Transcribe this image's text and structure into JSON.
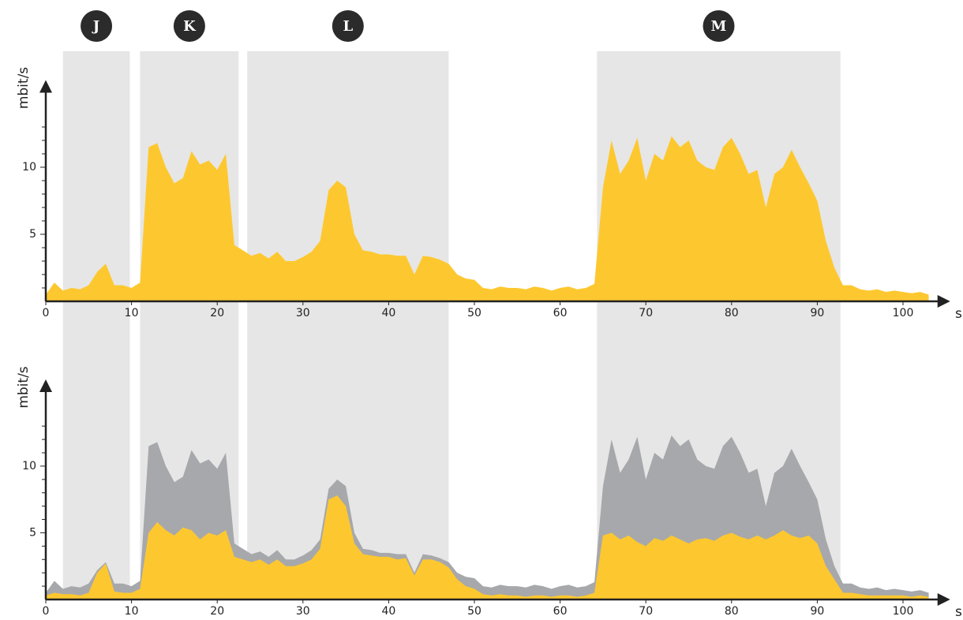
{
  "chart_data": [
    {
      "type": "area",
      "ylabel": "mbit/s",
      "xlabel": "s",
      "x": [
        0,
        1,
        2,
        3,
        4,
        5,
        6,
        7,
        8,
        9,
        10,
        11,
        12,
        13,
        14,
        15,
        16,
        17,
        18,
        19,
        20,
        21,
        22,
        23,
        24,
        25,
        26,
        27,
        28,
        29,
        30,
        31,
        32,
        33,
        34,
        35,
        36,
        37,
        38,
        39,
        40,
        41,
        42,
        43,
        44,
        45,
        46,
        47,
        48,
        49,
        50,
        51,
        52,
        53,
        54,
        55,
        56,
        57,
        58,
        59,
        60,
        61,
        62,
        63,
        64,
        65,
        66,
        67,
        68,
        69,
        70,
        71,
        72,
        73,
        74,
        75,
        76,
        77,
        78,
        79,
        80,
        81,
        82,
        83,
        84,
        85,
        86,
        87,
        88,
        89,
        90,
        91,
        92,
        93,
        94,
        95,
        96,
        97,
        98,
        99,
        100,
        101,
        102,
        103
      ],
      "series": [
        {
          "color": "#fdc82f",
          "values": [
            0.5,
            1.4,
            0.8,
            1.0,
            0.9,
            1.2,
            2.2,
            2.8,
            1.2,
            1.2,
            1.0,
            1.4,
            11.5,
            11.8,
            10.0,
            8.8,
            9.2,
            11.2,
            10.2,
            10.5,
            9.8,
            11.0,
            4.2,
            3.8,
            3.4,
            3.6,
            3.2,
            3.7,
            3.0,
            3.0,
            3.3,
            3.7,
            4.5,
            8.3,
            9.0,
            8.5,
            5.0,
            3.8,
            3.7,
            3.5,
            3.5,
            3.4,
            3.4,
            2.0,
            3.4,
            3.3,
            3.1,
            2.8,
            2.0,
            1.7,
            1.6,
            1.0,
            0.9,
            1.1,
            1.0,
            1.0,
            0.9,
            1.1,
            1.0,
            0.8,
            1.0,
            1.1,
            0.9,
            1.0,
            1.3,
            8.5,
            12.0,
            9.5,
            10.5,
            12.2,
            9.0,
            11.0,
            10.5,
            12.3,
            11.5,
            12.0,
            10.5,
            10.0,
            9.8,
            11.5,
            12.2,
            11.0,
            9.5,
            9.8,
            7.0,
            9.5,
            10.0,
            11.3,
            10.0,
            8.8,
            7.5,
            4.5,
            2.5,
            1.2,
            1.2,
            0.9,
            0.8,
            0.9,
            0.7,
            0.8,
            0.7,
            0.6,
            0.7,
            0.5
          ]
        }
      ],
      "xlim": [
        0,
        105.5
      ],
      "xticks": [
        0,
        10,
        20,
        30,
        40,
        50,
        60,
        70,
        80,
        90,
        100
      ],
      "ylim": [
        0,
        16.5
      ],
      "yticks": [
        5,
        10
      ],
      "yminorticks": [
        1,
        2,
        3,
        4,
        6,
        7,
        8,
        9,
        11,
        12,
        13
      ],
      "regions": [
        {
          "label": "J",
          "start": 2,
          "end": 9.8
        },
        {
          "label": "K",
          "start": 11,
          "end": 22.5
        },
        {
          "label": "L",
          "start": 23.5,
          "end": 47
        },
        {
          "label": "M",
          "start": 64.3,
          "end": 92.7
        }
      ],
      "region_color": "#e6e6e6"
    },
    {
      "type": "area",
      "ylabel": "mbit/s",
      "xlabel": "s",
      "x": [
        0,
        1,
        2,
        3,
        4,
        5,
        6,
        7,
        8,
        9,
        10,
        11,
        12,
        13,
        14,
        15,
        16,
        17,
        18,
        19,
        20,
        21,
        22,
        23,
        24,
        25,
        26,
        27,
        28,
        29,
        30,
        31,
        32,
        33,
        34,
        35,
        36,
        37,
        38,
        39,
        40,
        41,
        42,
        43,
        44,
        45,
        46,
        47,
        48,
        49,
        50,
        51,
        52,
        53,
        54,
        55,
        56,
        57,
        58,
        59,
        60,
        61,
        62,
        63,
        64,
        65,
        66,
        67,
        68,
        69,
        70,
        71,
        72,
        73,
        74,
        75,
        76,
        77,
        78,
        79,
        80,
        81,
        82,
        83,
        84,
        85,
        86,
        87,
        88,
        89,
        90,
        91,
        92,
        93,
        94,
        95,
        96,
        97,
        98,
        99,
        100,
        101,
        102,
        103
      ],
      "series": [
        {
          "color": "#a7a8ab",
          "values": [
            0.5,
            1.4,
            0.8,
            1.0,
            0.9,
            1.2,
            2.2,
            2.8,
            1.2,
            1.2,
            1.0,
            1.4,
            11.5,
            11.8,
            10.0,
            8.8,
            9.2,
            11.2,
            10.2,
            10.5,
            9.8,
            11.0,
            4.2,
            3.8,
            3.4,
            3.6,
            3.2,
            3.7,
            3.0,
            3.0,
            3.3,
            3.7,
            4.5,
            8.3,
            9.0,
            8.5,
            5.0,
            3.8,
            3.7,
            3.5,
            3.5,
            3.4,
            3.4,
            2.0,
            3.4,
            3.3,
            3.1,
            2.8,
            2.0,
            1.7,
            1.6,
            1.0,
            0.9,
            1.1,
            1.0,
            1.0,
            0.9,
            1.1,
            1.0,
            0.8,
            1.0,
            1.1,
            0.9,
            1.0,
            1.3,
            8.5,
            12.0,
            9.5,
            10.5,
            12.2,
            9.0,
            11.0,
            10.5,
            12.3,
            11.5,
            12.0,
            10.5,
            10.0,
            9.8,
            11.5,
            12.2,
            11.0,
            9.5,
            9.8,
            7.0,
            9.5,
            10.0,
            11.3,
            10.0,
            8.8,
            7.5,
            4.5,
            2.5,
            1.2,
            1.2,
            0.9,
            0.8,
            0.9,
            0.7,
            0.8,
            0.7,
            0.6,
            0.7,
            0.5
          ]
        },
        {
          "color": "#fdc82f",
          "values": [
            0.3,
            0.5,
            0.4,
            0.4,
            0.3,
            0.5,
            2.0,
            2.7,
            0.6,
            0.5,
            0.5,
            0.8,
            5.0,
            5.8,
            5.2,
            4.8,
            5.4,
            5.2,
            4.5,
            5.0,
            4.8,
            5.2,
            3.2,
            3.0,
            2.8,
            3.0,
            2.6,
            3.0,
            2.5,
            2.5,
            2.7,
            3.0,
            3.8,
            7.5,
            7.8,
            7.0,
            4.2,
            3.4,
            3.3,
            3.2,
            3.2,
            3.0,
            3.1,
            1.8,
            3.0,
            3.0,
            2.8,
            2.4,
            1.5,
            1.0,
            0.8,
            0.4,
            0.3,
            0.4,
            0.3,
            0.3,
            0.2,
            0.3,
            0.3,
            0.2,
            0.3,
            0.3,
            0.2,
            0.3,
            0.5,
            4.8,
            5.0,
            4.5,
            4.8,
            4.3,
            4.0,
            4.6,
            4.4,
            4.8,
            4.5,
            4.2,
            4.5,
            4.6,
            4.4,
            4.8,
            5.0,
            4.7,
            4.5,
            4.8,
            4.5,
            4.8,
            5.2,
            4.8,
            4.6,
            4.8,
            4.2,
            2.5,
            1.5,
            0.5,
            0.5,
            0.4,
            0.3,
            0.3,
            0.3,
            0.3,
            0.3,
            0.2,
            0.3,
            0.2
          ]
        }
      ],
      "xlim": [
        0,
        105.5
      ],
      "xticks": [
        0,
        10,
        20,
        30,
        40,
        50,
        60,
        70,
        80,
        90,
        100
      ],
      "ylim": [
        0,
        16.5
      ],
      "yticks": [
        5,
        10
      ],
      "yminorticks": [
        1,
        2,
        3,
        4,
        6,
        7,
        8,
        9,
        11,
        12,
        13
      ]
    }
  ]
}
